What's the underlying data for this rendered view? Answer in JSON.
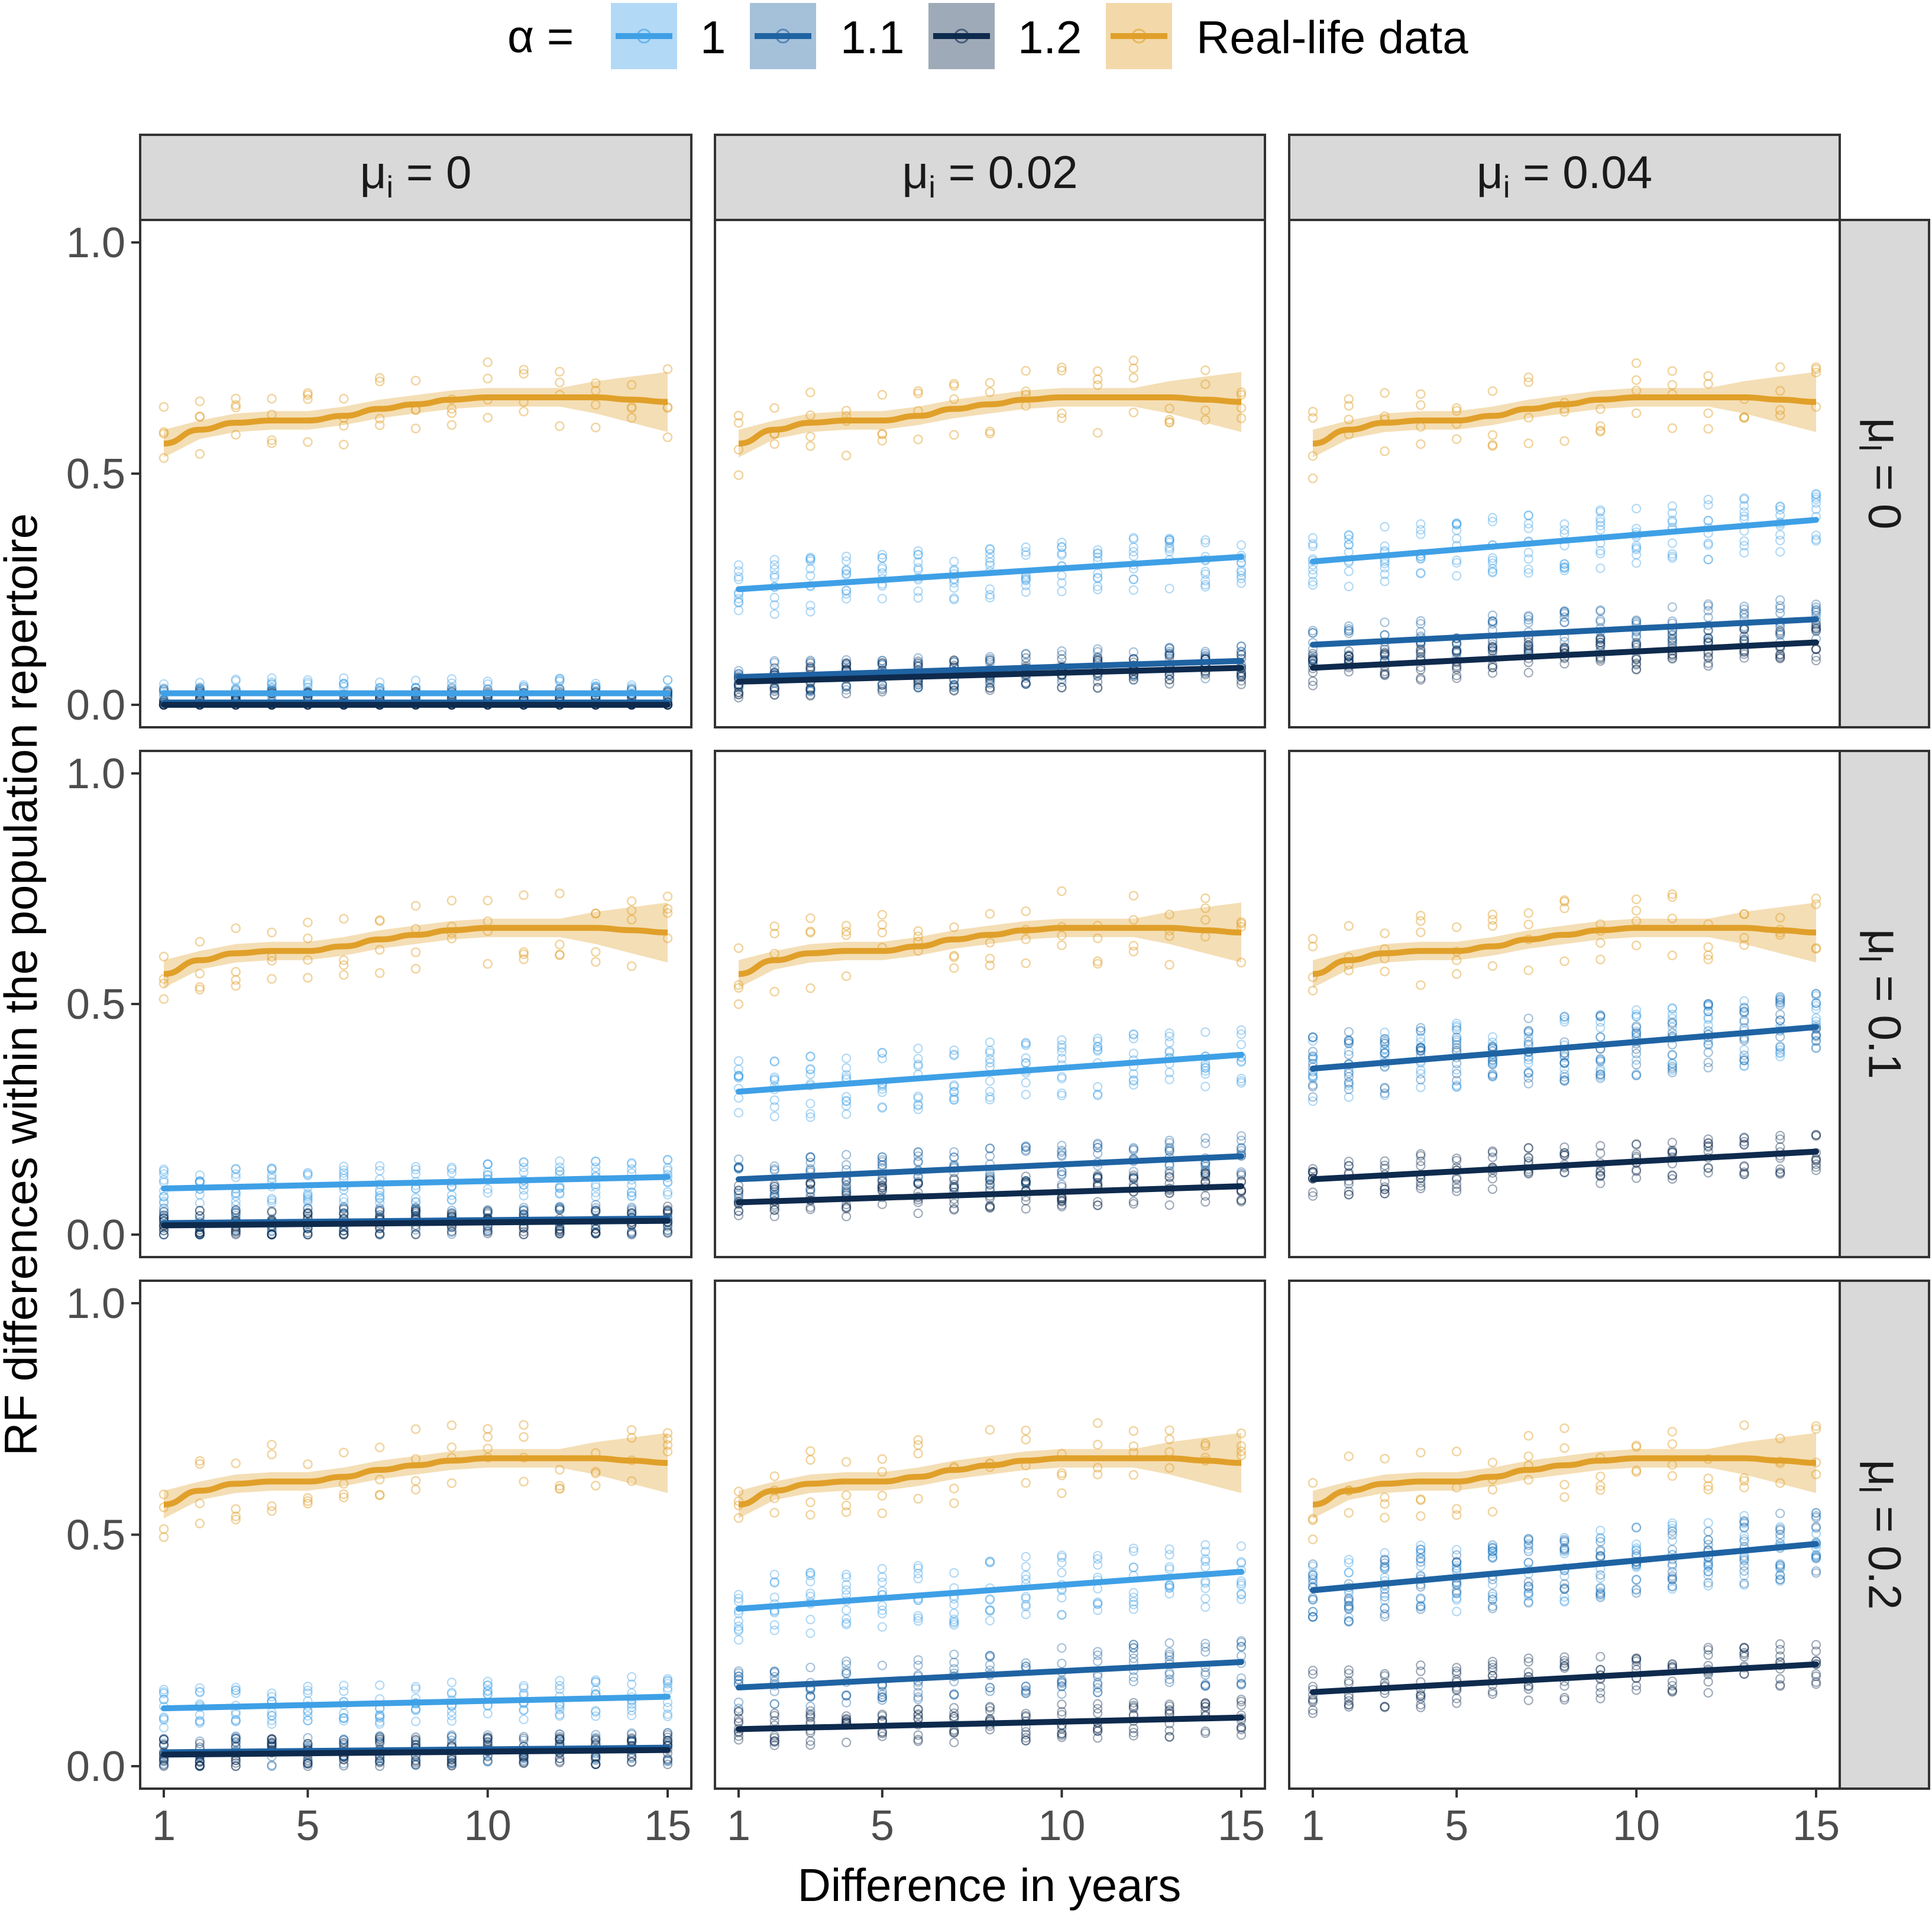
{
  "legend": {
    "title": "α =",
    "items": [
      {
        "label": "1",
        "color": "#3fa0e6"
      },
      {
        "label": "1.1",
        "color": "#1f63a3"
      },
      {
        "label": "1.2",
        "color": "#0e2a4d"
      },
      {
        "label": "Real-life data",
        "color": "#e0a02a"
      }
    ]
  },
  "chart_data": {
    "type": "scatter",
    "title": "",
    "xlabel": "Difference in years",
    "ylabel": "RF differences within the population repertoire",
    "xlim": [
      1,
      15
    ],
    "ylim": [
      0,
      1
    ],
    "x_ticks": [
      1,
      5,
      10,
      15
    ],
    "x_tick_labels": [
      "1",
      "5",
      "10",
      "15"
    ],
    "y_ticks": [
      0,
      0.5,
      1
    ],
    "y_tick_labels": [
      "0.0",
      "0.5",
      "1.0"
    ],
    "facet_cols": [
      "0",
      "0.02",
      "0.04"
    ],
    "facet_rows": [
      "0",
      "0.1",
      "0.2"
    ],
    "facet_col_var": "μ",
    "facet_col_sub": "i",
    "facet_row_var": "μ",
    "facet_row_sub": "l",
    "real_life": {
      "name": "Real-life data",
      "x": [
        1,
        2,
        3,
        4,
        5,
        6,
        7,
        8,
        9,
        10,
        11,
        12,
        13,
        14,
        15
      ],
      "y": [
        0.565,
        0.595,
        0.61,
        0.615,
        0.615,
        0.625,
        0.64,
        0.65,
        0.66,
        0.665,
        0.665,
        0.665,
        0.665,
        0.66,
        0.655
      ]
    },
    "panels": [
      {
        "row": 0,
        "col": 0,
        "series": [
          {
            "name": "1",
            "start": 0.025,
            "end": 0.025
          },
          {
            "name": "1.1",
            "start": 0.005,
            "end": 0.005
          },
          {
            "name": "1.2",
            "start": 0.0,
            "end": 0.0
          }
        ]
      },
      {
        "row": 0,
        "col": 1,
        "series": [
          {
            "name": "1",
            "start": 0.25,
            "end": 0.32
          },
          {
            "name": "1.1",
            "start": 0.06,
            "end": 0.095
          },
          {
            "name": "1.2",
            "start": 0.05,
            "end": 0.08
          }
        ]
      },
      {
        "row": 0,
        "col": 2,
        "series": [
          {
            "name": "1",
            "start": 0.31,
            "end": 0.4
          },
          {
            "name": "1.1",
            "start": 0.13,
            "end": 0.185
          },
          {
            "name": "1.2",
            "start": 0.08,
            "end": 0.135
          }
        ]
      },
      {
        "row": 1,
        "col": 0,
        "series": [
          {
            "name": "1",
            "start": 0.1,
            "end": 0.125
          },
          {
            "name": "1.1",
            "start": 0.025,
            "end": 0.035
          },
          {
            "name": "1.2",
            "start": 0.02,
            "end": 0.03
          }
        ]
      },
      {
        "row": 1,
        "col": 1,
        "series": [
          {
            "name": "1",
            "start": 0.31,
            "end": 0.39
          },
          {
            "name": "1.1",
            "start": 0.12,
            "end": 0.17
          },
          {
            "name": "1.2",
            "start": 0.07,
            "end": 0.105
          }
        ]
      },
      {
        "row": 1,
        "col": 2,
        "series": [
          {
            "name": "1",
            "start": 0.36,
            "end": 0.45
          },
          {
            "name": "1.1",
            "start": 0.36,
            "end": 0.45
          },
          {
            "name": "1.2",
            "start": 0.12,
            "end": 0.18
          }
        ]
      },
      {
        "row": 2,
        "col": 0,
        "series": [
          {
            "name": "1",
            "start": 0.125,
            "end": 0.15
          },
          {
            "name": "1.1",
            "start": 0.03,
            "end": 0.04
          },
          {
            "name": "1.2",
            "start": 0.025,
            "end": 0.035
          }
        ]
      },
      {
        "row": 2,
        "col": 1,
        "series": [
          {
            "name": "1",
            "start": 0.34,
            "end": 0.42
          },
          {
            "name": "1.1",
            "start": 0.17,
            "end": 0.225
          },
          {
            "name": "1.2",
            "start": 0.08,
            "end": 0.105
          }
        ]
      },
      {
        "row": 2,
        "col": 2,
        "series": [
          {
            "name": "1",
            "start": 0.38,
            "end": 0.48
          },
          {
            "name": "1.1",
            "start": 0.38,
            "end": 0.48
          },
          {
            "name": "1.2",
            "start": 0.16,
            "end": 0.22
          }
        ]
      }
    ]
  }
}
